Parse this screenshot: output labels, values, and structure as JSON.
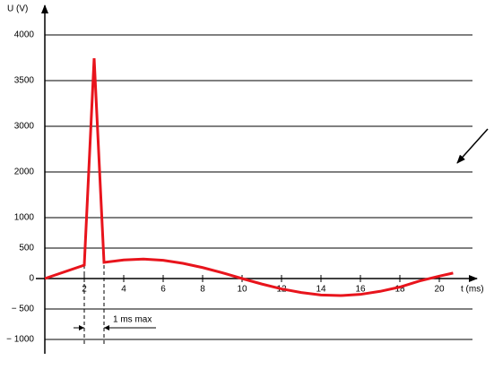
{
  "chart_data": {
    "type": "line",
    "y_label": "U (V)",
    "x_label": "t (ms)",
    "annotation": "1 ms max",
    "x": [
      0,
      2,
      2.5,
      3,
      4,
      5,
      6,
      7,
      8,
      9,
      10,
      11,
      12,
      13,
      14,
      15,
      16,
      17,
      18,
      19,
      20,
      20.7
    ],
    "series": [
      {
        "color": "#e8141c",
        "values": [
          0,
          220,
          3745,
          265,
          305,
          320,
          300,
          250,
          180,
          95,
          0,
          -90,
          -170,
          -230,
          -270,
          -280,
          -260,
          -210,
          -140,
          -40,
          40,
          90
        ]
      }
    ],
    "xlim": [
      0,
      22
    ],
    "xticks": [
      2,
      4,
      6,
      8,
      10,
      12,
      14,
      16,
      18,
      20
    ],
    "ylim": [
      -1000,
      4000
    ],
    "yticks": [
      4000,
      3500,
      3000,
      2000,
      1000,
      500,
      0,
      {
        "value": -500,
        "label": "− 500"
      },
      {
        "value": -1000,
        "label": "− 1000"
      }
    ],
    "grid": true
  }
}
